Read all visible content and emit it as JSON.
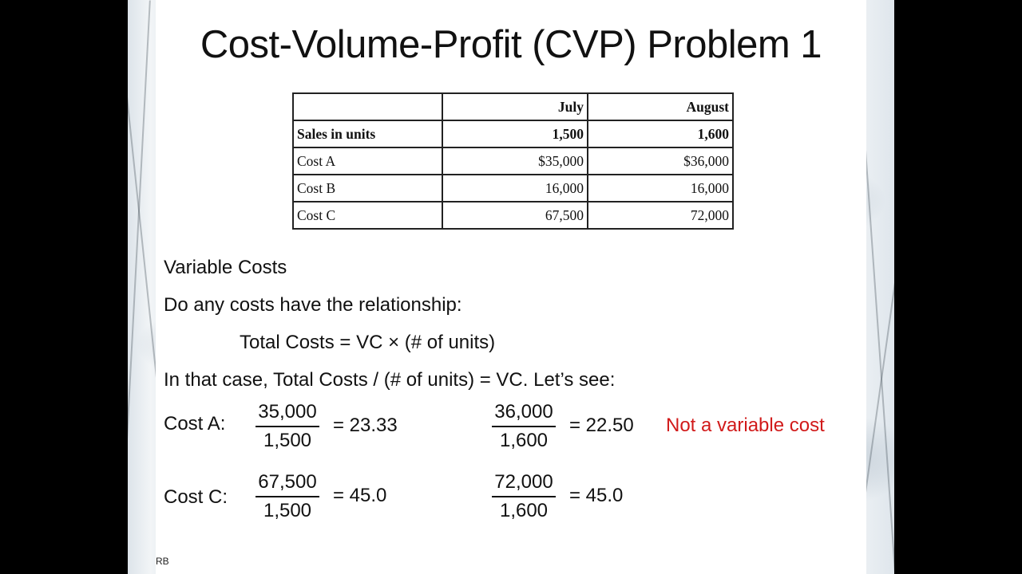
{
  "slide": {
    "title": "Cost-Volume-Profit (CVP) Problem 1",
    "footer": "RB"
  },
  "table": {
    "header": [
      "",
      "July",
      "August"
    ],
    "rows": [
      {
        "label": "Sales in units",
        "july": "1,500",
        "august": "1,600"
      },
      {
        "label": "Cost A",
        "july": "$35,000",
        "august": "$36,000"
      },
      {
        "label": "Cost B",
        "july": "16,000",
        "august": "16,000"
      },
      {
        "label": "Cost C",
        "july": "67,500",
        "august": "72,000"
      }
    ]
  },
  "body": {
    "line1": "Variable Costs",
    "line2": "Do any costs have the relationship:",
    "line3": "Total Costs = VC × (# of units)",
    "line4": "In that case, Total Costs / (# of units) = VC. Let’s see:"
  },
  "calc": {
    "cost_a": {
      "label": "Cost A:",
      "july": {
        "num": "35,000",
        "den": "1,500",
        "result": "= 23.33"
      },
      "august": {
        "num": "36,000",
        "den": "1,600",
        "result": "= 22.50"
      },
      "note": "Not a variable cost"
    },
    "cost_c": {
      "label": "Cost C:",
      "july": {
        "num": "67,500",
        "den": "1,500",
        "result": "= 45.0"
      },
      "august": {
        "num": "72,000",
        "den": "1,600",
        "result": "= 45.0"
      }
    }
  },
  "colors": {
    "note": "#d11a1a",
    "text": "#111111"
  }
}
